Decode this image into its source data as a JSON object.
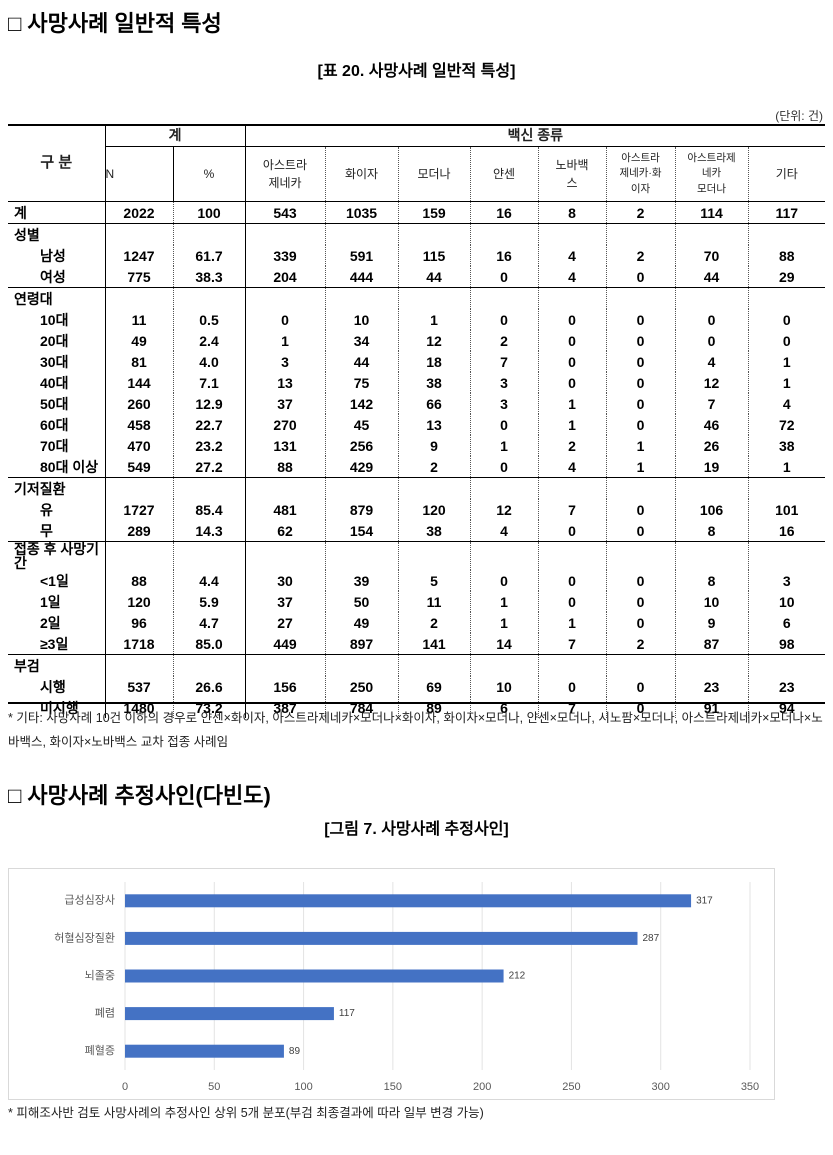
{
  "section1": {
    "title": "□ 사망사례 일반적 특성",
    "caption": "[표 20. 사망사례 일반적 특성]",
    "unit": "(단위: 건)",
    "table": {
      "header": {
        "label": "구 분",
        "total": "계",
        "vaccine": "백신 종류",
        "columns": [
          "N",
          "%",
          "아스트라\n제네카",
          "화이자",
          "모더나",
          "얀센",
          "노바백\n스",
          "아스트라\n제네카·화\n이자",
          "아스트라제\n네카\n모더나",
          "기타"
        ]
      },
      "total_row": {
        "label": "계",
        "cells": [
          "2022",
          "100",
          "543",
          "1035",
          "159",
          "16",
          "8",
          "2",
          "114",
          "117"
        ]
      },
      "groups": [
        {
          "label": "성별",
          "rows": [
            {
              "label": "남성",
              "cells": [
                "1247",
                "61.7",
                "339",
                "591",
                "115",
                "16",
                "4",
                "2",
                "70",
                "88"
              ]
            },
            {
              "label": "여성",
              "cells": [
                "775",
                "38.3",
                "204",
                "444",
                "44",
                "0",
                "4",
                "0",
                "44",
                "29"
              ]
            }
          ]
        },
        {
          "label": "연령대",
          "rows": [
            {
              "label": "10대",
              "cells": [
                "11",
                "0.5",
                "0",
                "10",
                "1",
                "0",
                "0",
                "0",
                "0",
                "0"
              ]
            },
            {
              "label": "20대",
              "cells": [
                "49",
                "2.4",
                "1",
                "34",
                "12",
                "2",
                "0",
                "0",
                "0",
                "0"
              ]
            },
            {
              "label": "30대",
              "cells": [
                "81",
                "4.0",
                "3",
                "44",
                "18",
                "7",
                "0",
                "0",
                "4",
                "1"
              ]
            },
            {
              "label": "40대",
              "cells": [
                "144",
                "7.1",
                "13",
                "75",
                "38",
                "3",
                "0",
                "0",
                "12",
                "1"
              ]
            },
            {
              "label": "50대",
              "cells": [
                "260",
                "12.9",
                "37",
                "142",
                "66",
                "3",
                "1",
                "0",
                "7",
                "4"
              ]
            },
            {
              "label": "60대",
              "cells": [
                "458",
                "22.7",
                "270",
                "45",
                "13",
                "0",
                "1",
                "0",
                "46",
                "72"
              ]
            },
            {
              "label": "70대",
              "cells": [
                "470",
                "23.2",
                "131",
                "256",
                "9",
                "1",
                "2",
                "1",
                "26",
                "38"
              ]
            },
            {
              "label": "80대 이상",
              "cells": [
                "549",
                "27.2",
                "88",
                "429",
                "2",
                "0",
                "4",
                "1",
                "19",
                "1"
              ]
            }
          ]
        },
        {
          "label": "기저질환",
          "rows": [
            {
              "label": "유",
              "cells": [
                "1727",
                "85.4",
                "481",
                "879",
                "120",
                "12",
                "7",
                "0",
                "106",
                "101"
              ]
            },
            {
              "label": "무",
              "cells": [
                "289",
                "14.3",
                "62",
                "154",
                "38",
                "4",
                "0",
                "0",
                "8",
                "16"
              ]
            }
          ]
        },
        {
          "label": "접종 후 사망기간",
          "rows": [
            {
              "label": "<1일",
              "cells": [
                "88",
                "4.4",
                "30",
                "39",
                "5",
                "0",
                "0",
                "0",
                "8",
                "3"
              ]
            },
            {
              "label": "1일",
              "cells": [
                "120",
                "5.9",
                "37",
                "50",
                "11",
                "1",
                "0",
                "0",
                "10",
                "10"
              ]
            },
            {
              "label": "2일",
              "cells": [
                "96",
                "4.7",
                "27",
                "49",
                "2",
                "1",
                "1",
                "0",
                "9",
                "6"
              ]
            },
            {
              "label": "≥3일",
              "cells": [
                "1718",
                "85.0",
                "449",
                "897",
                "141",
                "14",
                "7",
                "2",
                "87",
                "98"
              ]
            }
          ]
        },
        {
          "label": "부검",
          "rows": [
            {
              "label": "시행",
              "cells": [
                "537",
                "26.6",
                "156",
                "250",
                "69",
                "10",
                "0",
                "0",
                "23",
                "23"
              ]
            },
            {
              "label": "미시행",
              "cells": [
                "1480",
                "73.2",
                "387",
                "784",
                "89",
                "6",
                "7",
                "0",
                "91",
                "94"
              ]
            }
          ]
        }
      ]
    },
    "footnote": "* 기타: 사망사례 10건 이하의 경우로 얀센×화이자, 아스트라제네카×모더나×화이자, 화이자×모더나, 얀센×모더나, 시노팜×모더나, 아스트라제네카×모더나×노바백스, 화이자×노바백스 교차 접종 사례임"
  },
  "section2": {
    "title": "□ 사망사례 추정사인(다빈도)",
    "footnote": "* 피해조사반 검토 사망사례의 추정사인 상위 5개 분포(부검 최종결과에 따라 일부 변경 가능)"
  },
  "chart_data": {
    "type": "barh",
    "title": "[그림 7. 사망사례 추정사인]",
    "categories": [
      "급성심장사",
      "허혈심장질환",
      "뇌졸중",
      "폐렴",
      "폐혈증"
    ],
    "values": [
      317,
      287,
      212,
      117,
      89
    ],
    "color": "#4472c4",
    "xlim": [
      0,
      350
    ],
    "xticks": [
      0,
      50,
      100,
      150,
      200,
      250,
      300,
      350
    ],
    "grid": true,
    "data_labels": true
  }
}
